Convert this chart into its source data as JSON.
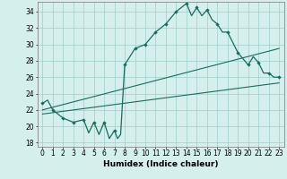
{
  "xlabel": "Humidex (Indice chaleur)",
  "bg_color": "#d4efec",
  "line_color": "#1a6b5e",
  "xlim": [
    -0.5,
    23.5
  ],
  "ylim": [
    17.5,
    35.2
  ],
  "xticks": [
    0,
    1,
    2,
    3,
    4,
    5,
    6,
    7,
    8,
    9,
    10,
    11,
    12,
    13,
    14,
    15,
    16,
    17,
    18,
    19,
    20,
    21,
    22,
    23
  ],
  "yticks": [
    18,
    20,
    22,
    24,
    26,
    28,
    30,
    32,
    34
  ],
  "main_curve_x": [
    0,
    0.5,
    1,
    2,
    3,
    4,
    4.5,
    5,
    5.5,
    6,
    6.5,
    7,
    7.3,
    7.6,
    8,
    9,
    10,
    11,
    12,
    13,
    14,
    14.5,
    15,
    15.5,
    16,
    16.5,
    17,
    17.5,
    18,
    19,
    20,
    20.5,
    21,
    21.5,
    22,
    22.5,
    23
  ],
  "main_curve_y": [
    22.8,
    23.2,
    22.0,
    21.0,
    20.5,
    20.8,
    19.2,
    20.5,
    19.0,
    20.5,
    18.5,
    19.5,
    18.5,
    19.0,
    27.5,
    29.5,
    30.0,
    31.5,
    32.5,
    34.0,
    35.0,
    33.5,
    34.5,
    33.5,
    34.2,
    33.0,
    32.5,
    31.5,
    31.5,
    29.0,
    27.5,
    28.5,
    27.8,
    26.5,
    26.5,
    26.0,
    26.0
  ],
  "marker_x": [
    0,
    1,
    2,
    3,
    4,
    5,
    6,
    7,
    8,
    9,
    10,
    11,
    12,
    13,
    14,
    15,
    16,
    17,
    18,
    19,
    20,
    21,
    22,
    23
  ],
  "marker_y": [
    22.8,
    22.0,
    21.0,
    20.5,
    20.8,
    20.5,
    20.5,
    19.5,
    27.5,
    29.5,
    30.0,
    31.5,
    32.5,
    34.0,
    35.0,
    34.5,
    34.2,
    32.5,
    31.5,
    29.0,
    27.5,
    27.8,
    26.5,
    26.0
  ],
  "line2_x": [
    0,
    23
  ],
  "line2_y": [
    22.0,
    29.5
  ],
  "line3_x": [
    0,
    23
  ],
  "line3_y": [
    21.5,
    25.3
  ],
  "grid_color": "#9ecfca",
  "tick_fontsize": 5.5,
  "xlabel_fontsize": 6.5,
  "figsize": [
    3.2,
    2.0
  ],
  "dpi": 100
}
